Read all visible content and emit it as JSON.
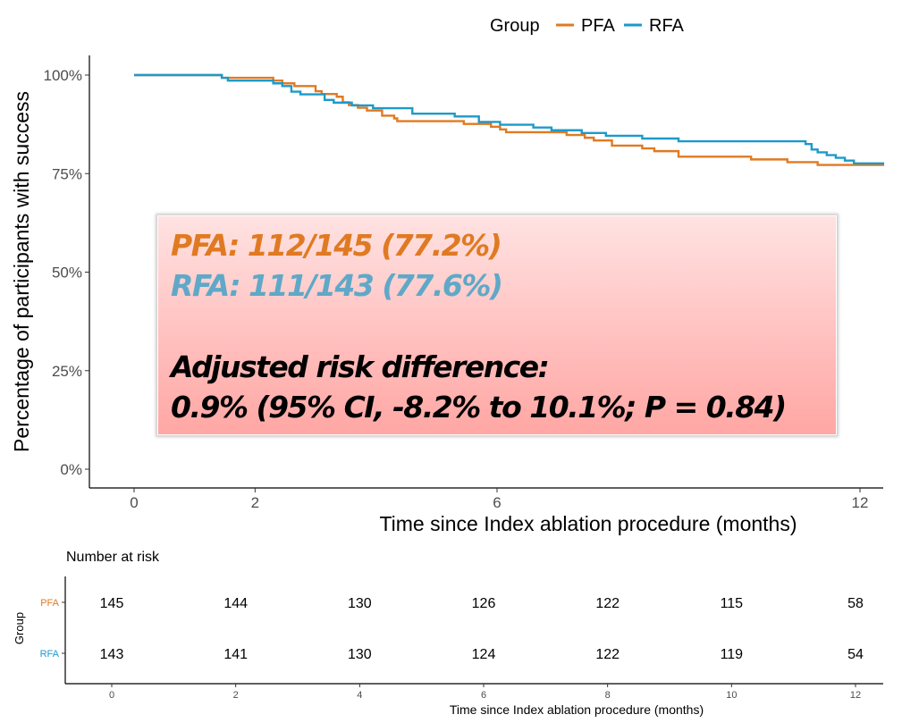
{
  "legend": {
    "title": "Group",
    "entries": [
      {
        "label": "PFA",
        "color": "#e07a22"
      },
      {
        "label": "RFA",
        "color": "#1d9ac9"
      }
    ]
  },
  "chart_data": [
    {
      "type": "line",
      "subtype": "kaplan-meier step",
      "title": "",
      "xlabel": "Time since Index ablation procedure (months)",
      "ylabel": "Percentage of participants with success",
      "xlim": [
        -0.7,
        12.4
      ],
      "ylim": [
        0,
        100
      ],
      "x_ticks": [
        0,
        2,
        6,
        12
      ],
      "x_tick_labels": [
        "0",
        "2",
        "6",
        "12"
      ],
      "y_ticks": [
        0,
        25,
        50,
        75,
        100
      ],
      "y_tick_labels": [
        "0%",
        "25%",
        "50%",
        "75%",
        "100%"
      ],
      "grid": false,
      "series": [
        {
          "name": "PFA",
          "color": "#e07a22",
          "x": [
            0,
            1.45,
            2.3,
            2.45,
            2.65,
            3.0,
            3.1,
            3.35,
            3.45,
            3.55,
            3.7,
            3.85,
            4.1,
            4.3,
            4.35,
            4.4,
            5.45,
            5.9,
            6.05,
            6.15,
            6.7,
            7.15,
            7.45,
            7.6,
            7.9,
            8.4,
            8.6,
            9.0,
            10.2,
            10.8,
            11.15,
            11.3,
            11.45,
            11.8,
            12.4
          ],
          "y": [
            100,
            99.3,
            98.6,
            97.9,
            97.2,
            95.9,
            95.2,
            94.5,
            93.1,
            92.4,
            91.7,
            91.0,
            89.7,
            89.0,
            88.3,
            88.3,
            87.6,
            86.9,
            86.2,
            85.5,
            85.5,
            84.8,
            84.1,
            83.4,
            82.1,
            81.4,
            80.7,
            79.3,
            78.6,
            77.9,
            77.9,
            77.2,
            77.2,
            77.2,
            77.2
          ]
        },
        {
          "name": "RFA",
          "color": "#1d9ac9",
          "x": [
            0,
            1.45,
            1.55,
            2.1,
            2.3,
            2.45,
            2.6,
            2.75,
            3.15,
            3.3,
            3.6,
            3.95,
            4.6,
            5.3,
            5.7,
            6.05,
            6.6,
            6.9,
            7.4,
            7.8,
            8.4,
            9.0,
            10.15,
            11.1,
            11.2,
            11.3,
            11.45,
            11.6,
            11.75,
            11.9,
            12.4
          ],
          "y": [
            100,
            99.3,
            98.6,
            98.6,
            97.9,
            97.2,
            95.8,
            95.1,
            93.7,
            93.0,
            92.3,
            91.6,
            90.2,
            89.5,
            88.1,
            87.4,
            86.7,
            86.0,
            85.3,
            84.6,
            83.9,
            83.2,
            83.2,
            82.5,
            81.1,
            80.4,
            79.7,
            79.0,
            78.3,
            77.6,
            77.6
          ]
        }
      ]
    },
    {
      "type": "table",
      "title": "Number at risk",
      "xlabel": "Time since Index ablation procedure (months)",
      "ylabel": "Group",
      "x_ticks": [
        0,
        2,
        4,
        6,
        8,
        10,
        12
      ],
      "x_tick_labels": [
        "0",
        "2",
        "4",
        "6",
        "8",
        "10",
        "12"
      ],
      "rows": [
        {
          "group": "PFA",
          "color": "#e07a22",
          "values": [
            145,
            144,
            130,
            126,
            122,
            115,
            58
          ]
        },
        {
          "group": "RFA",
          "color": "#1d9ac9",
          "values": [
            143,
            141,
            130,
            124,
            122,
            119,
            54
          ]
        }
      ]
    }
  ],
  "annotation": {
    "pfa_text": "PFA: 112/145 (77.2%)",
    "rfa_text": "RFA: 111/143 (77.6%)",
    "adjusted_label": "Adjusted risk difference:",
    "adjusted_value": "0.9% (95% CI, -8.2% to 10.1%; P = 0.84)"
  }
}
